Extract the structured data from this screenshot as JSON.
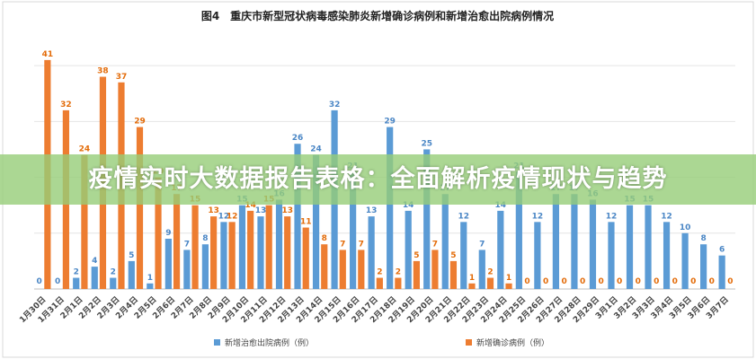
{
  "chart_data": {
    "type": "bar",
    "title": "图4　重庆市新型冠状病毒感染肺炎新增确诊病例和新增治愈出院病例情况",
    "categories": [
      "1月30日",
      "1月31日",
      "2月1日",
      "2月2日",
      "2月3日",
      "2月4日",
      "2月5日",
      "2月6日",
      "2月7日",
      "2月8日",
      "2月9日",
      "2月10日",
      "2月11日",
      "2月12日",
      "2月13日",
      "2月14日",
      "2月15日",
      "2月16日",
      "2月17日",
      "2月18日",
      "2月19日",
      "2月20日",
      "2月21日",
      "2月22日",
      "2月23日",
      "2月24日",
      "2月25日",
      "2月26日",
      "2月27日",
      "2月28日",
      "2月29日",
      "3月1日",
      "3月2日",
      "3月3日",
      "3月4日",
      "3月5日",
      "3月6日",
      "3月7日"
    ],
    "series": [
      {
        "name": "新增治愈出院病例（例）",
        "color": "#5b9bd5",
        "values": [
          0,
          0,
          2,
          4,
          2,
          5,
          1,
          9,
          7,
          8,
          12,
          15,
          13,
          16,
          26,
          24,
          32,
          21,
          13,
          29,
          14,
          25,
          17,
          12,
          7,
          14,
          21,
          12,
          17,
          17,
          16,
          12,
          15,
          15,
          12,
          10,
          8,
          6
        ]
      },
      {
        "name": "新增确诊病例（例）",
        "color": "#ed7d31",
        "values": [
          41,
          32,
          24,
          38,
          37,
          29,
          20,
          17,
          15,
          13,
          12,
          14,
          15,
          13,
          11,
          8,
          7,
          7,
          2,
          2,
          5,
          7,
          5,
          1,
          2,
          1,
          0,
          0,
          0,
          0,
          0,
          0,
          0,
          0,
          0,
          0,
          0,
          0
        ]
      }
    ],
    "ylim": [
      0,
      45
    ],
    "grid": true,
    "legend_position": "bottom"
  },
  "overlay": {
    "text": "疫情实时大数据报告表格：全面解析疫情现状与趋势"
  }
}
